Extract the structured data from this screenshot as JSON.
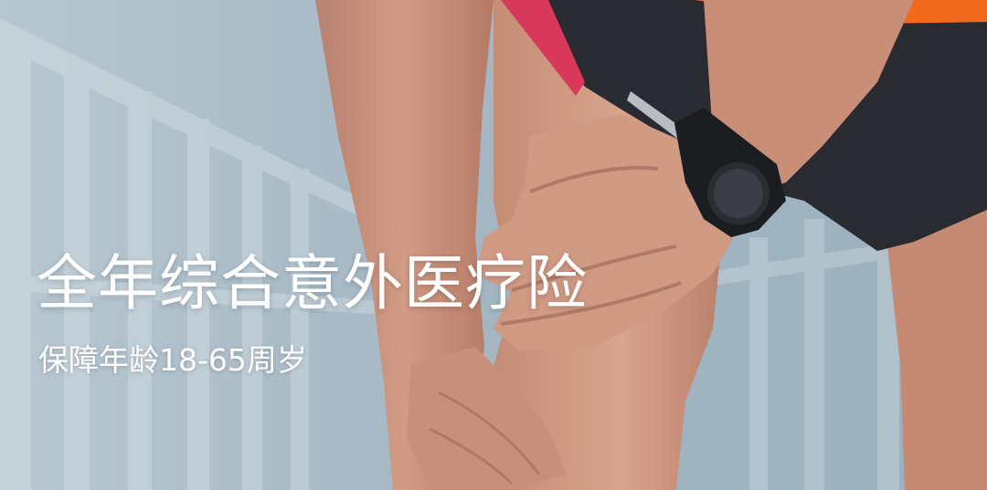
{
  "banner": {
    "title": "全年综合意外医疗险",
    "subtitle": "保障年龄18-65周岁",
    "photo": "runner-holding-knee-photo"
  },
  "colors": {
    "text": "#ffffff",
    "background_tint": "#a9bcc7",
    "shirt_orange": "#f26a1b",
    "shorts_dark": "#2a2b31",
    "skin": "#c98e77"
  }
}
